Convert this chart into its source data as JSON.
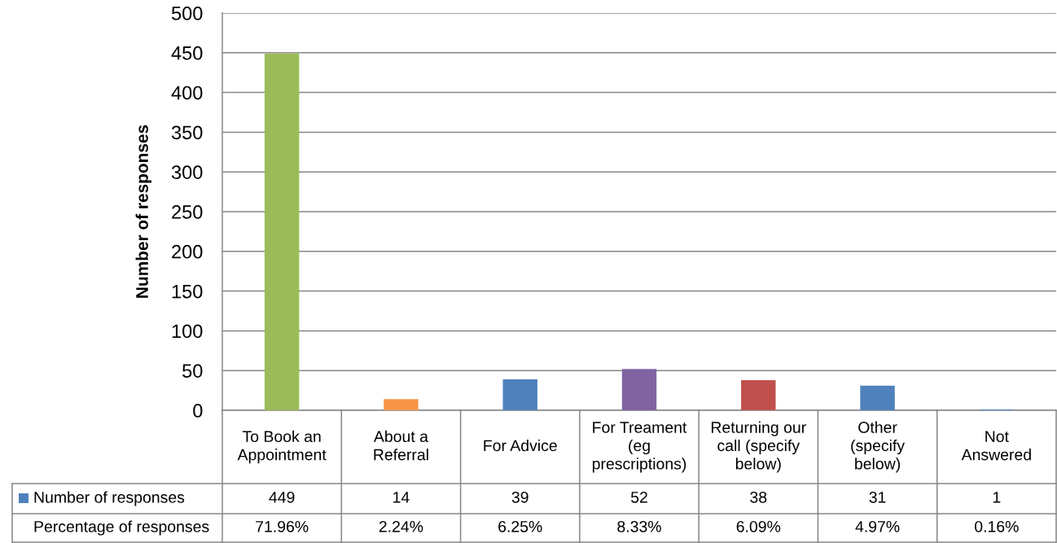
{
  "chart_data": {
    "type": "bar",
    "ylabel": "Number of responses",
    "categories": [
      "To Book an\nAppointment",
      "About a\nReferral",
      "For Advice",
      "For Treament\n(eg\nprescriptions)",
      "Returning our\ncall (specify\nbelow)",
      "Other\n(specify\nbelow)",
      "Not\nAnswered"
    ],
    "series": [
      {
        "name": "Number of responses",
        "color": "#4f81bd",
        "colors": [
          "#9bbb59",
          "#f79646",
          "#4f81bd",
          "#8064a2",
          "#c0504d",
          "#4f81bd",
          "#4f81bd"
        ],
        "values": [
          449,
          14,
          39,
          52,
          38,
          31,
          1
        ]
      }
    ],
    "ylim": [
      0,
      500
    ],
    "yticks": [
      0,
      50,
      100,
      150,
      200,
      250,
      300,
      350,
      400,
      450,
      500
    ],
    "grid": "y",
    "legend": "bottom",
    "data_labels": true,
    "annotations": [
      "Percentage of responses",
      "71.96%",
      "2.24%",
      "6.25%",
      "8.33%",
      "6.09%",
      "4.97%",
      "0.16%"
    ]
  }
}
